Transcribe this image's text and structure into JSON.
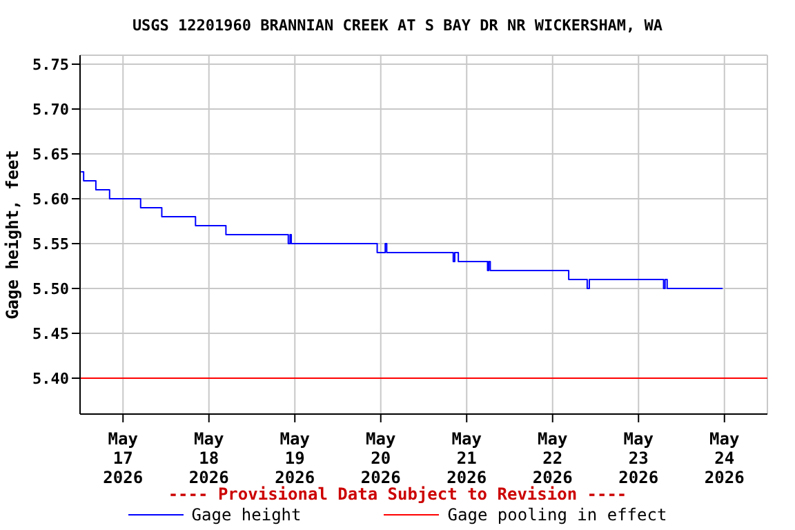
{
  "chart_data": {
    "type": "step",
    "title": "USGS 12201960 BRANNIAN CREEK AT S BAY DR NR WICKERSHAM, WA",
    "ylabel": "Gage height, feet",
    "annotations": [
      "---- Provisional Data Subject to Revision ----"
    ],
    "x": [
      "2026-05-16T12:15",
      "2026-05-16T13:00",
      "2026-05-16T16:25",
      "2026-05-16T20:15",
      "2026-05-17T04:55",
      "2026-05-17T10:50",
      "2026-05-17T20:15",
      "2026-05-18T04:45",
      "2026-05-18T22:10",
      "2026-05-18T22:40",
      "2026-05-18T23:00",
      "2026-05-19T23:00",
      "2026-05-20T01:15",
      "2026-05-20T01:40",
      "2026-05-20T20:15",
      "2026-05-20T20:40",
      "2026-05-20T21:40",
      "2026-05-21T05:50",
      "2026-05-21T06:10",
      "2026-05-21T06:35",
      "2026-05-22T04:30",
      "2026-05-22T09:40",
      "2026-05-22T10:15",
      "2026-05-23T07:00",
      "2026-05-23T07:25",
      "2026-05-23T08:00",
      "2026-05-23T23:30"
    ],
    "series": [
      {
        "name": "Gage height",
        "color": "#0000ff",
        "values": [
          5.63,
          5.62,
          5.61,
          5.6,
          5.59,
          5.58,
          5.57,
          5.56,
          5.55,
          5.56,
          5.55,
          5.54,
          5.55,
          5.54,
          5.53,
          5.54,
          5.53,
          5.52,
          5.53,
          5.52,
          5.51,
          5.5,
          5.51,
          5.5,
          5.51,
          5.5,
          5.5
        ]
      }
    ],
    "ref_lines": [
      {
        "axis": "y",
        "value": 5.4,
        "label": "Gage pooling in effect",
        "color": "#ff0000"
      }
    ],
    "xlim": [
      "2026-05-16T12:00",
      "2026-05-24T12:00"
    ],
    "xticks": [
      {
        "value": "2026-05-17",
        "label": "May\n17\n2026"
      },
      {
        "value": "2026-05-18",
        "label": "May\n18\n2026"
      },
      {
        "value": "2026-05-19",
        "label": "May\n19\n2026"
      },
      {
        "value": "2026-05-20",
        "label": "May\n20\n2026"
      },
      {
        "value": "2026-05-21",
        "label": "May\n21\n2026"
      },
      {
        "value": "2026-05-22",
        "label": "May\n22\n2026"
      },
      {
        "value": "2026-05-23",
        "label": "May\n23\n2026"
      },
      {
        "value": "2026-05-24",
        "label": "May\n24\n2026"
      }
    ],
    "ylim": [
      5.36,
      5.76
    ],
    "yticks": [
      {
        "value": 5.4,
        "label": "5.40"
      },
      {
        "value": 5.45,
        "label": "5.45"
      },
      {
        "value": 5.5,
        "label": "5.50"
      },
      {
        "value": 5.55,
        "label": "5.55"
      },
      {
        "value": 5.6,
        "label": "5.60"
      },
      {
        "value": 5.65,
        "label": "5.65"
      },
      {
        "value": 5.7,
        "label": "5.70"
      },
      {
        "value": 5.75,
        "label": "5.75"
      }
    ],
    "grid": true,
    "legend": "bottom",
    "line_style": "solid",
    "marker": "none"
  }
}
